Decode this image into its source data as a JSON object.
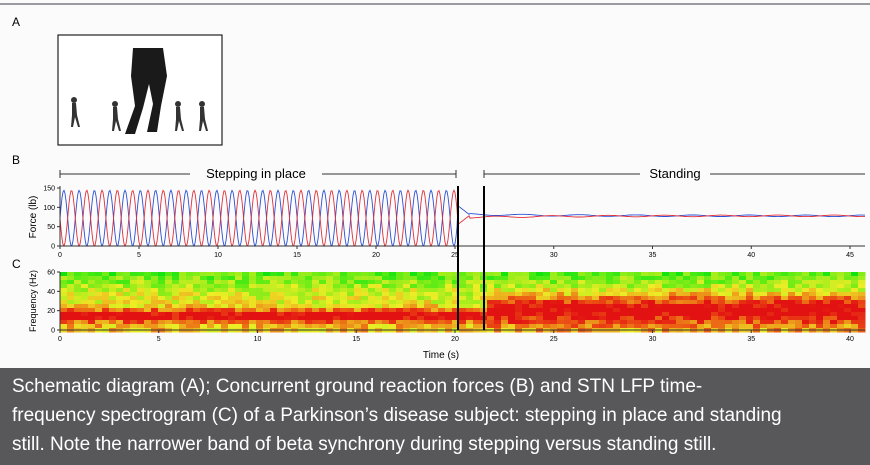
{
  "panels": {
    "a": {
      "label": "A"
    },
    "b": {
      "label": "B",
      "segments": [
        {
          "label": "Stepping in place"
        },
        {
          "label": "Standing"
        }
      ],
      "y_label": "Force (lb)",
      "ylim": [
        0,
        150
      ],
      "yticks": [
        0,
        50,
        100,
        150
      ],
      "xlim_stepping": [
        0,
        25
      ],
      "xticks_stepping": [
        0,
        5,
        10,
        15,
        20,
        25
      ],
      "xlim_standing": [
        25,
        45
      ],
      "xticks_standing": [
        30,
        35,
        40,
        45
      ]
    },
    "c": {
      "label": "C",
      "y_label": "Frequency (Hz)",
      "ylim": [
        0,
        60
      ],
      "yticks": [
        0,
        20,
        40,
        60
      ],
      "xlim": [
        0,
        40
      ],
      "xticks": [
        0,
        5,
        10,
        15,
        20,
        25,
        30,
        35,
        40
      ],
      "x_label": "Time (s)"
    }
  },
  "caption": {
    "lines": [
      "Schematic diagram (A); Concurrent ground reaction forces (B) and STN LFP time-",
      "frequency spectrogram (C) of a Parkinson’s disease subject: stepping in place and standing",
      "still. Note the narrower band of beta synchrony during stepping versus standing still."
    ]
  }
}
